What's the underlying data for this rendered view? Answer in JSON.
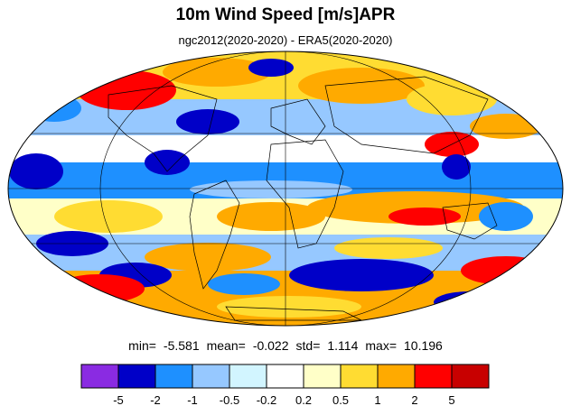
{
  "title": "10m Wind Speed [m/s]APR",
  "subtitle": "ngc2012(2020-2020) - ERA5(2020-2020)",
  "stats": {
    "min_label": "min=",
    "min": "-5.581",
    "mean_label": "mean=",
    "mean": "-0.022",
    "std_label": "std=",
    "std": "1.114",
    "max_label": "max=",
    "max": "10.196"
  },
  "colorbar": {
    "tick_labels": [
      "-5",
      "-2",
      "-1",
      "-0.5",
      "-0.2",
      "0.2",
      "0.5",
      "1",
      "2",
      "5"
    ],
    "colors": [
      "#8a2be2",
      "#0000c8",
      "#1e90ff",
      "#96c8ff",
      "#d2f5ff",
      "#ffffff",
      "#ffffc8",
      "#ffdc32",
      "#ffaa00",
      "#ff0000",
      "#c80000"
    ]
  },
  "map": {
    "projection": "mollweide",
    "colors": {
      "ocean_neg": "#1e90ff",
      "land_line": "#000000",
      "grid_line": "#000000"
    }
  }
}
